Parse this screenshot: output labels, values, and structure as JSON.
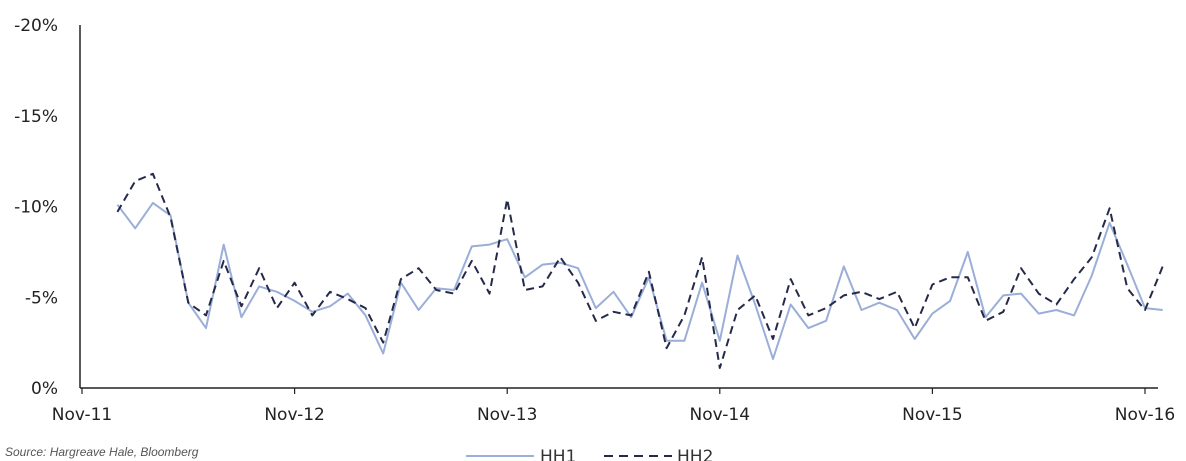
{
  "chart_data": {
    "type": "line",
    "title": "",
    "xlabel": "",
    "ylabel": "",
    "x_tick_labels": [
      "Nov-11",
      "Nov-12",
      "Nov-13",
      "Nov-14",
      "Nov-15",
      "Nov-16"
    ],
    "y_tick_labels": [
      "-20%",
      "-15%",
      "-10%",
      "-5%",
      "0%"
    ],
    "y_ticks": [
      -20,
      -15,
      -10,
      -5,
      0
    ],
    "ylim": [
      0,
      -20
    ],
    "y_axis_inverted": true,
    "x_range_months": [
      0,
      61
    ],
    "grid": false,
    "legend_position": "bottom-center",
    "colors": {
      "HH1": "#9aaed8",
      "HH2": "#262a4a"
    },
    "series": [
      {
        "name": "HH1",
        "style": "solid",
        "values": [
          -10.1,
          -8.8,
          -10.2,
          -9.5,
          -4.7,
          -3.3,
          -7.9,
          -3.9,
          -5.6,
          -5.3,
          -4.8,
          -4.2,
          -4.5,
          -5.2,
          -4.0,
          -1.9,
          -5.8,
          -4.3,
          -5.5,
          -5.4,
          -7.8,
          -7.9,
          -8.2,
          -6.1,
          -6.8,
          -6.9,
          -6.6,
          -4.4,
          -5.3,
          -3.9,
          -6.1,
          -2.6,
          -2.6,
          -5.8,
          -2.6,
          -7.3,
          -4.6,
          -1.6,
          -4.6,
          -3.3,
          -3.7,
          -6.7,
          -4.3,
          -4.7,
          -4.3,
          -2.7,
          -4.1,
          -4.8,
          -7.5,
          -3.9,
          -5.1,
          -5.2,
          -4.1,
          -4.3,
          -4.0,
          -6.2,
          -9.1,
          -6.8,
          -4.4,
          -4.3
        ]
      },
      {
        "name": "HH2",
        "style": "dashed",
        "values": [
          -9.7,
          -11.4,
          -11.8,
          -9.4,
          -4.7,
          -4.0,
          -7.0,
          -4.5,
          -6.6,
          -4.4,
          -5.8,
          -4.0,
          -5.3,
          -4.9,
          -4.4,
          -2.5,
          -6.0,
          -6.6,
          -5.4,
          -5.2,
          -7.0,
          -5.2,
          -10.4,
          -5.4,
          -5.6,
          -7.2,
          -5.8,
          -3.7,
          -4.2,
          -4.0,
          -6.4,
          -2.2,
          -4.0,
          -7.2,
          -1.1,
          -4.3,
          -5.1,
          -2.7,
          -6.0,
          -4.0,
          -4.4,
          -5.1,
          -5.3,
          -4.9,
          -5.3,
          -3.3,
          -5.7,
          -6.1,
          -6.1,
          -3.7,
          -4.2,
          -6.6,
          -5.2,
          -4.6,
          -6.0,
          -7.2,
          -9.9,
          -5.5,
          -4.3,
          -6.7
        ]
      }
    ]
  },
  "source_note": "Source: Hargreave Hale, Bloomberg",
  "legend": [
    {
      "label": "HH1"
    },
    {
      "label": "HH2"
    }
  ]
}
